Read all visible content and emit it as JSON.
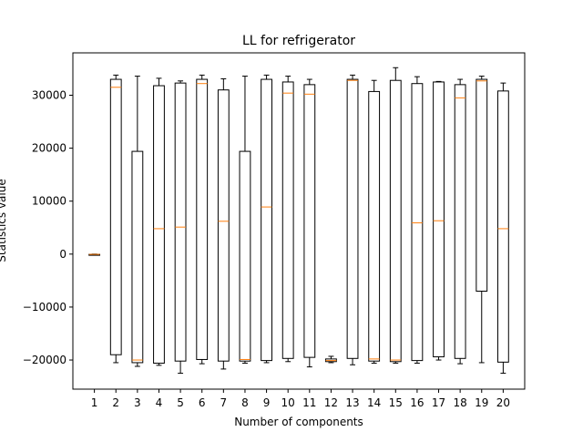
{
  "chart_data": {
    "type": "box",
    "title": "LL for refrigerator",
    "xlabel": "Number of components",
    "ylabel": "Statistics value",
    "ylim": [
      -25500,
      38000
    ],
    "yticks": [
      -20000,
      -10000,
      0,
      10000,
      20000,
      30000
    ],
    "ytick_labels": [
      "−20000",
      "−10000",
      "0",
      "10000",
      "20000",
      "30000"
    ],
    "categories": [
      "1",
      "2",
      "3",
      "4",
      "5",
      "6",
      "7",
      "8",
      "9",
      "10",
      "11",
      "12",
      "13",
      "14",
      "15",
      "16",
      "17",
      "18",
      "19",
      "20"
    ],
    "boxes": [
      {
        "whislo": -100,
        "q1": -100,
        "med": -50,
        "q3": -50,
        "whishi": 0
      },
      {
        "whislo": -20500,
        "q1": -19000,
        "med": 31500,
        "q3": 33000,
        "whishi": 33800
      },
      {
        "whislo": -21200,
        "q1": -20500,
        "med": -20000,
        "q3": 19400,
        "whishi": 33600
      },
      {
        "whislo": -21000,
        "q1": -20600,
        "med": 4800,
        "q3": 31800,
        "whishi": 33200
      },
      {
        "whislo": -22500,
        "q1": -20200,
        "med": 5100,
        "q3": 32300,
        "whishi": 32700
      },
      {
        "whislo": -20700,
        "q1": -19900,
        "med": 32200,
        "q3": 33000,
        "whishi": 33800
      },
      {
        "whislo": -21700,
        "q1": -20200,
        "med": 6200,
        "q3": 31000,
        "whishi": 33100
      },
      {
        "whislo": -20600,
        "q1": -20200,
        "med": -19900,
        "q3": 19400,
        "whishi": 33600
      },
      {
        "whislo": -20500,
        "q1": -20100,
        "med": 8900,
        "q3": 33000,
        "whishi": 33800
      },
      {
        "whislo": -20300,
        "q1": -19700,
        "med": 30400,
        "q3": 32500,
        "whishi": 33600
      },
      {
        "whislo": -21300,
        "q1": -19500,
        "med": 30200,
        "q3": 32000,
        "whishi": 33000
      },
      {
        "whislo": -20500,
        "q1": -20300,
        "med": -20100,
        "q3": -19800,
        "whishi": -19300
      },
      {
        "whislo": -20900,
        "q1": -19700,
        "med": 32800,
        "q3": 33000,
        "whishi": 33800
      },
      {
        "whislo": -20600,
        "q1": -20200,
        "med": -19800,
        "q3": 30700,
        "whishi": 32800
      },
      {
        "whislo": -20600,
        "q1": -20300,
        "med": -20000,
        "q3": 32800,
        "whishi": 35200
      },
      {
        "whislo": -20600,
        "q1": -20100,
        "med": 5900,
        "q3": 32200,
        "whishi": 33500
      },
      {
        "whislo": -20000,
        "q1": -19400,
        "med": 6300,
        "q3": 32500,
        "whishi": 32600
      },
      {
        "whislo": -20700,
        "q1": -19700,
        "med": 29500,
        "q3": 32000,
        "whishi": 33000
      },
      {
        "whislo": -20500,
        "q1": -7000,
        "med": 32700,
        "q3": 33000,
        "whishi": 33600
      },
      {
        "whislo": -22500,
        "q1": -20400,
        "med": 4800,
        "q3": 30800,
        "whishi": 32300
      }
    ],
    "colors": {
      "box": "#000000",
      "median": "#ff7f0e",
      "axes": "#000000",
      "background": "#ffffff"
    },
    "grid": false,
    "legend": "none"
  }
}
